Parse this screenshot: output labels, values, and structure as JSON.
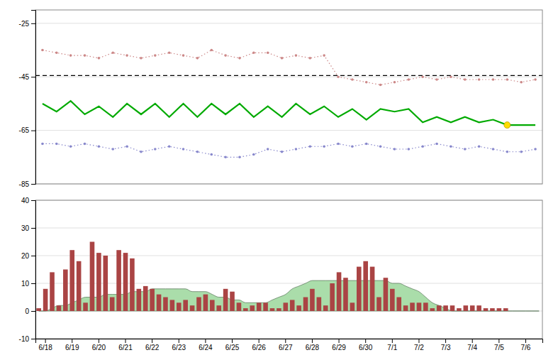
{
  "chart_data": [
    {
      "type": "line",
      "ylim": [
        -85,
        -20
      ],
      "yticks": [
        -85,
        -65,
        -45,
        -25
      ],
      "grid": true,
      "tick_labels": "y",
      "series": [
        {
          "type": "hline",
          "values": [
            -44.5
          ],
          "color": "#000000",
          "line_style": "dashed"
        },
        {
          "values": [
            -35,
            -36,
            -37,
            -37,
            -38,
            -36,
            -37,
            -38,
            -37,
            -36,
            -37,
            -38,
            -35,
            -37,
            -38,
            -36,
            -36,
            -38,
            -37,
            -38,
            -37,
            -45,
            -46,
            -47,
            -48,
            -47,
            -46,
            -45,
            -46,
            -45,
            -46,
            -46,
            -46,
            -46,
            -47,
            -46
          ],
          "color": "#cc8888",
          "line_style": "dotted",
          "marker": "point"
        },
        {
          "values": [
            -70,
            -70,
            -71,
            -70,
            -71,
            -72,
            -71,
            -73,
            -72,
            -71,
            -72,
            -73,
            -74,
            -75,
            -75,
            -74,
            -72,
            -73,
            -72,
            -71,
            -71,
            -70,
            -71,
            -70,
            -71,
            -72,
            -72,
            -71,
            -70,
            -71,
            -72,
            -71,
            -72,
            -73,
            -73,
            -72
          ],
          "color": "#8888cc",
          "line_style": "dotted",
          "marker": "point"
        },
        {
          "values": [
            -55,
            -58,
            -54,
            -59,
            -56,
            -60,
            -55,
            -59,
            -55,
            -60,
            -55,
            -60,
            -55,
            -59,
            -55,
            -60,
            -56,
            -60,
            -55,
            -59,
            -56,
            -60,
            -57,
            -61,
            -57,
            -58,
            -57,
            -62,
            -60,
            -62,
            -60,
            -62,
            -61,
            -63,
            -63,
            -63
          ],
          "color": "#00aa00",
          "line_style": "solid"
        },
        {
          "type": "scatter",
          "values": [
            null,
            null,
            null,
            null,
            null,
            null,
            null,
            null,
            null,
            null,
            null,
            null,
            null,
            null,
            null,
            null,
            null,
            null,
            null,
            null,
            null,
            null,
            null,
            null,
            null,
            null,
            null,
            null,
            null,
            null,
            null,
            null,
            null,
            -63,
            null,
            null
          ],
          "color": "#ffdd00",
          "marker": "circle"
        }
      ]
    },
    {
      "type": "bar",
      "categories": [
        null,
        "6/18",
        null,
        null,
        null,
        "6/19",
        null,
        null,
        null,
        "6/20",
        null,
        null,
        null,
        "6/21",
        null,
        null,
        null,
        "6/22",
        null,
        null,
        null,
        "6/23",
        null,
        null,
        null,
        "6/24",
        null,
        null,
        null,
        "6/25",
        null,
        null,
        null,
        "6/26",
        null,
        null,
        null,
        "6/27",
        null,
        null,
        null,
        "6/28",
        null,
        null,
        null,
        "6/29",
        null,
        null,
        null,
        "6/30",
        null,
        null,
        null,
        "7/1",
        null,
        null,
        null,
        "7/2",
        null,
        null,
        null,
        "7/3",
        null,
        null,
        null,
        "7/4",
        null,
        null,
        null,
        "7/5",
        null,
        null,
        null,
        "7/6",
        null,
        null
      ],
      "ylim": [
        -10,
        40
      ],
      "yticks": [
        -10,
        0,
        10,
        20,
        30,
        40
      ],
      "grid": true,
      "series": [
        {
          "type": "area",
          "values": [
            0,
            0,
            1,
            2,
            2,
            3,
            4,
            5,
            5,
            5,
            6,
            6,
            6,
            6,
            7,
            7,
            7,
            8,
            8,
            8,
            8,
            8,
            8,
            7,
            7,
            7,
            6,
            5,
            5,
            4,
            4,
            3,
            3,
            3,
            3,
            4,
            5,
            6,
            8,
            9,
            10,
            11,
            11,
            11,
            11,
            11,
            11,
            11,
            11,
            11,
            11,
            11,
            11,
            10,
            10,
            9,
            8,
            7,
            5,
            3,
            2,
            1,
            0,
            0,
            0,
            0,
            0,
            0,
            0,
            0,
            0,
            0,
            0,
            0,
            0,
            0
          ],
          "color": "#aaddaa"
        },
        {
          "type": "bar",
          "values": [
            1,
            8,
            14,
            2,
            15,
            22,
            18,
            3,
            25,
            21,
            20,
            5,
            22,
            21,
            19,
            8,
            9,
            8,
            6,
            5,
            4,
            3,
            4,
            2,
            5,
            6,
            4,
            2,
            8,
            7,
            3,
            1,
            2,
            3,
            3,
            1,
            1,
            3,
            4,
            2,
            5,
            8,
            5,
            2,
            10,
            14,
            12,
            3,
            16,
            18,
            16,
            5,
            12,
            8,
            5,
            2,
            3,
            3,
            3,
            1,
            2,
            2,
            2,
            1,
            2,
            2,
            2,
            1,
            1,
            1,
            1,
            0,
            0,
            0,
            0,
            0
          ],
          "color": "#aa4444"
        }
      ]
    }
  ]
}
